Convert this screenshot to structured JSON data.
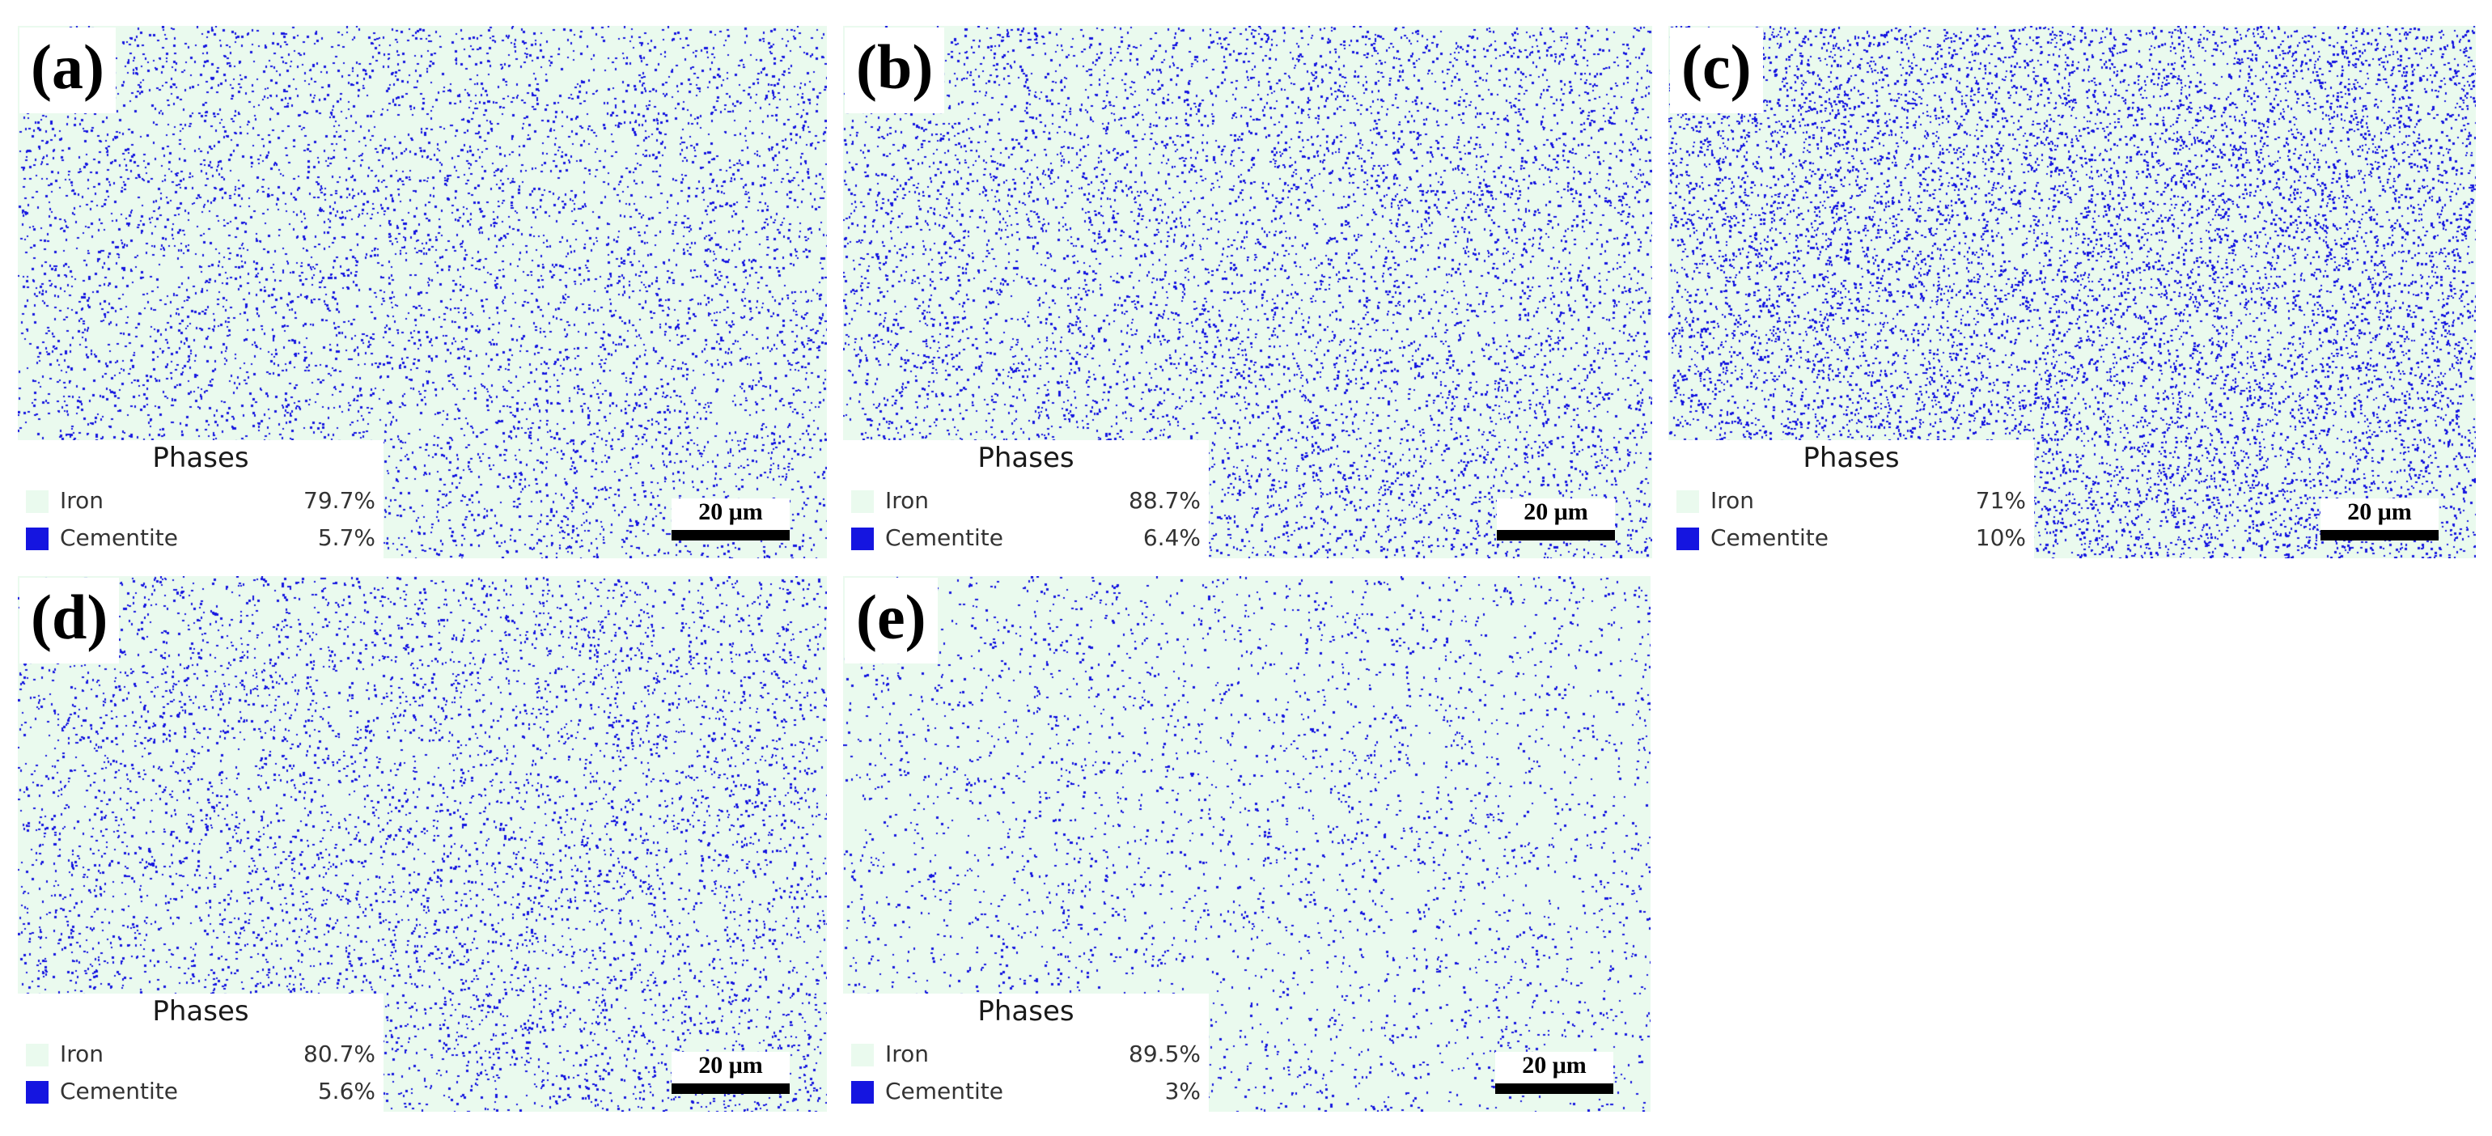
{
  "colors": {
    "iron": "#eafaee",
    "cementite": "#1515e0",
    "scale_bar": "#000000"
  },
  "panels": [
    {
      "label": "(a)",
      "legend": {
        "title": "Phases",
        "iron_name": "Iron",
        "iron_value": "79.7%",
        "cementite_name": "Cementite",
        "cementite_value": "5.7%"
      },
      "scale_bar": "20 μm",
      "cementite_fraction": 0.057
    },
    {
      "label": "(b)",
      "legend": {
        "title": "Phases",
        "iron_name": "Iron",
        "iron_value": "88.7%",
        "cementite_name": "Cementite",
        "cementite_value": "6.4%"
      },
      "scale_bar": "20 μm",
      "cementite_fraction": 0.064
    },
    {
      "label": "(c)",
      "legend": {
        "title": "Phases",
        "iron_name": "Iron",
        "iron_value": "71%",
        "cementite_name": "Cementite",
        "cementite_value": "10%"
      },
      "scale_bar": "20 μm",
      "cementite_fraction": 0.1
    },
    {
      "label": "(d)",
      "legend": {
        "title": "Phases",
        "iron_name": "Iron",
        "iron_value": "80.7%",
        "cementite_name": "Cementite",
        "cementite_value": "5.6%"
      },
      "scale_bar": "20 μm",
      "cementite_fraction": 0.056
    },
    {
      "label": "(e)",
      "legend": {
        "title": "Phases",
        "iron_name": "Iron",
        "iron_value": "89.5%",
        "cementite_name": "Cementite",
        "cementite_value": "3%"
      },
      "scale_bar": "20 μm",
      "cementite_fraction": 0.03
    }
  ]
}
